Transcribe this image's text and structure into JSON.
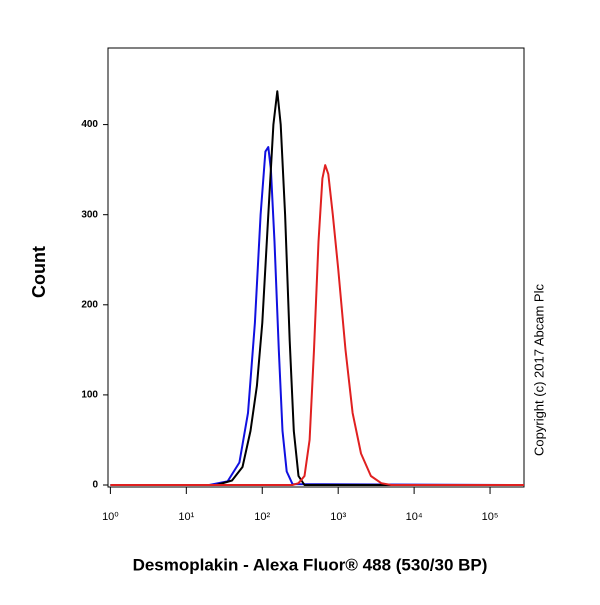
{
  "chart_data": {
    "type": "line",
    "x_label": "Desmoplakin - Alexa Fluor® 488 (530/30 BP)",
    "y_label": "Count",
    "annotation": "Copyright (c) 2017 Abcam Plc",
    "xscale": "log",
    "xlim": [
      0.93,
      280000
    ],
    "ylim": [
      0,
      485
    ],
    "xticks": [
      {
        "value": 1,
        "label": "10⁰"
      },
      {
        "value": 10,
        "label": "10¹"
      },
      {
        "value": 100,
        "label": "10²"
      },
      {
        "value": 1000,
        "label": "10³"
      },
      {
        "value": 10000,
        "label": "10⁴"
      },
      {
        "value": 100000,
        "label": "10⁵"
      }
    ],
    "yticks": [
      0,
      100,
      200,
      300,
      400
    ],
    "series": [
      {
        "color": "#1010e0",
        "x": [
          1,
          20,
          35,
          50,
          65,
          80,
          95,
          110,
          120,
          130,
          145,
          165,
          185,
          210,
          250,
          280000
        ],
        "values": [
          0,
          0,
          4,
          25,
          80,
          180,
          300,
          370,
          375,
          350,
          270,
          150,
          60,
          15,
          1,
          0
        ]
      },
      {
        "color": "#000000",
        "x": [
          1,
          25,
          40,
          55,
          70,
          85,
          100,
          120,
          140,
          158,
          175,
          200,
          230,
          260,
          300,
          360,
          280000
        ],
        "values": [
          0,
          0,
          5,
          20,
          60,
          110,
          180,
          300,
          400,
          437,
          400,
          300,
          160,
          60,
          10,
          0,
          0
        ]
      },
      {
        "color": "#e02020",
        "x": [
          1,
          250,
          300,
          360,
          420,
          480,
          550,
          620,
          675,
          740,
          850,
          1000,
          1250,
          1550,
          2000,
          2700,
          3700,
          5000,
          280000
        ],
        "values": [
          0,
          0,
          2,
          10,
          50,
          150,
          270,
          340,
          355,
          345,
          300,
          240,
          150,
          80,
          35,
          10,
          2,
          0,
          0
        ]
      }
    ]
  }
}
